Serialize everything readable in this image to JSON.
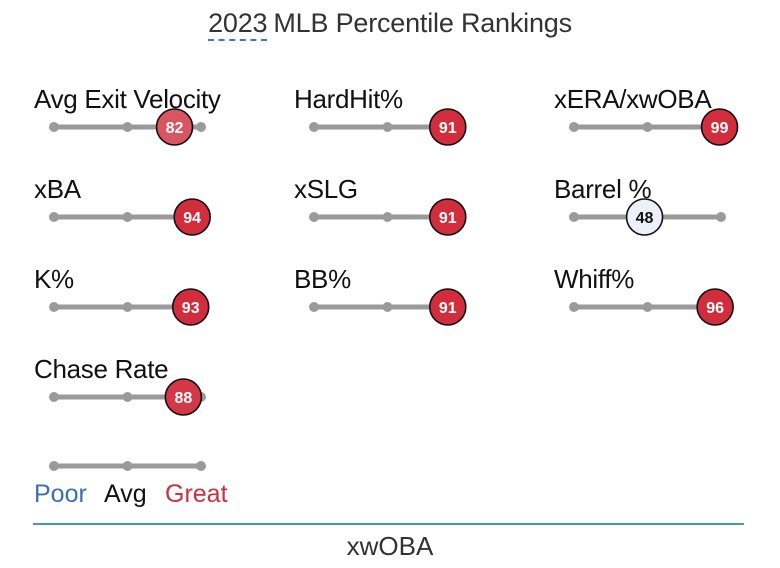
{
  "title": {
    "year": "2023",
    "rest": "MLB Percentile Rankings"
  },
  "chart_data": {
    "type": "percentile-slider",
    "title": "2023 MLB Percentile Rankings",
    "range": [
      0,
      100
    ],
    "metrics": [
      {
        "label": "Avg Exit Velocity",
        "value": 82
      },
      {
        "label": "HardHit%",
        "value": 91
      },
      {
        "label": "xERA/xwOBA",
        "value": 99
      },
      {
        "label": "xBA",
        "value": 94
      },
      {
        "label": "xSLG",
        "value": 91
      },
      {
        "label": "Barrel %",
        "value": 48
      },
      {
        "label": "K%",
        "value": 93
      },
      {
        "label": "BB%",
        "value": 91
      },
      {
        "label": "Whiff%",
        "value": 96
      },
      {
        "label": "Chase Rate",
        "value": 88
      }
    ]
  },
  "legend": {
    "poor": "Poor",
    "avg": "Avg",
    "great": "Great"
  },
  "footer": "xwOBA",
  "colors": {
    "poor": "#3c6eb4",
    "great": "#d22d3c",
    "track": "#9a9a9a",
    "divider": "#4a9a9e"
  }
}
